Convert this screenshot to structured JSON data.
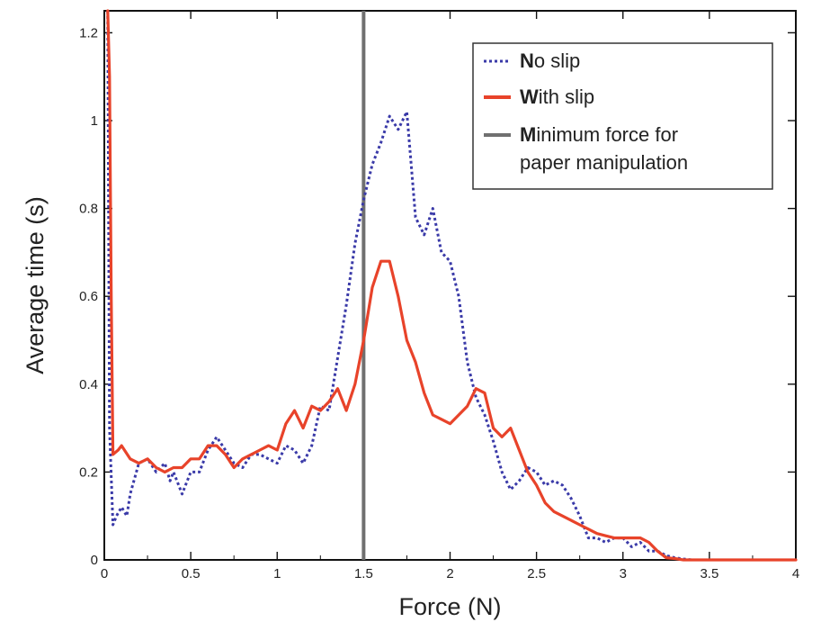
{
  "chart_data": {
    "type": "line",
    "xlabel": "Force (N)",
    "ylabel": "Average time (s)",
    "xlim": [
      0,
      4
    ],
    "ylim": [
      0,
      1.25
    ],
    "xticks": [
      0,
      0.5,
      1,
      1.5,
      2,
      2.5,
      3,
      3.5,
      4
    ],
    "xtick_labels": [
      "0",
      "0.5",
      "1",
      "1.5",
      "2",
      "2.5",
      "3",
      "3.5",
      "4"
    ],
    "yticks": [
      0,
      0.2,
      0.4,
      0.6,
      0.8,
      1,
      1.2
    ],
    "ytick_labels": [
      "0",
      "0.2",
      "0.4",
      "0.6",
      "0.8",
      "1",
      "1.2"
    ],
    "grid": false,
    "minor_ticks_x": [
      0.25,
      0.75,
      1.25,
      1.75,
      2.25,
      2.75,
      3.25,
      3.75
    ],
    "legend_position": "top-right",
    "vertical_line": {
      "name": "Minimum force for paper manipulation",
      "x": 1.5,
      "color": "#707070"
    },
    "series": [
      {
        "name": "No slip",
        "style": "dotted",
        "color": "#3a3aa8",
        "x": [
          0.02,
          0.03,
          0.05,
          0.07,
          0.1,
          0.13,
          0.15,
          0.2,
          0.25,
          0.3,
          0.35,
          0.38,
          0.4,
          0.43,
          0.45,
          0.5,
          0.55,
          0.6,
          0.65,
          0.7,
          0.75,
          0.8,
          0.85,
          0.9,
          0.95,
          1.0,
          1.05,
          1.1,
          1.15,
          1.2,
          1.25,
          1.3,
          1.35,
          1.4,
          1.45,
          1.5,
          1.55,
          1.6,
          1.65,
          1.7,
          1.75,
          1.8,
          1.85,
          1.9,
          1.95,
          2.0,
          2.05,
          2.1,
          2.15,
          2.2,
          2.25,
          2.3,
          2.35,
          2.4,
          2.45,
          2.5,
          2.55,
          2.6,
          2.65,
          2.7,
          2.75,
          2.8,
          2.85,
          2.9,
          2.95,
          3.0,
          3.05,
          3.1,
          3.15,
          3.2,
          3.25,
          3.3,
          3.35,
          3.4
        ],
        "y": [
          1.25,
          0.3,
          0.08,
          0.1,
          0.12,
          0.1,
          0.15,
          0.22,
          0.23,
          0.2,
          0.22,
          0.18,
          0.2,
          0.17,
          0.15,
          0.2,
          0.2,
          0.25,
          0.28,
          0.25,
          0.22,
          0.21,
          0.24,
          0.24,
          0.23,
          0.22,
          0.26,
          0.25,
          0.22,
          0.26,
          0.35,
          0.34,
          0.46,
          0.58,
          0.72,
          0.82,
          0.9,
          0.95,
          1.01,
          0.98,
          1.02,
          0.78,
          0.74,
          0.8,
          0.7,
          0.68,
          0.6,
          0.45,
          0.37,
          0.33,
          0.27,
          0.2,
          0.16,
          0.18,
          0.21,
          0.2,
          0.17,
          0.18,
          0.17,
          0.14,
          0.1,
          0.05,
          0.05,
          0.04,
          0.05,
          0.05,
          0.03,
          0.04,
          0.02,
          0.02,
          0.01,
          0.005,
          0.002,
          0.0
        ]
      },
      {
        "name": "With slip",
        "style": "solid",
        "color": "#e8432a",
        "x": [
          0.02,
          0.03,
          0.04,
          0.05,
          0.08,
          0.1,
          0.15,
          0.2,
          0.25,
          0.3,
          0.35,
          0.4,
          0.45,
          0.5,
          0.55,
          0.6,
          0.65,
          0.7,
          0.75,
          0.8,
          0.85,
          0.9,
          0.95,
          1.0,
          1.05,
          1.1,
          1.15,
          1.2,
          1.25,
          1.3,
          1.35,
          1.4,
          1.45,
          1.5,
          1.55,
          1.6,
          1.65,
          1.7,
          1.75,
          1.8,
          1.85,
          1.9,
          1.95,
          2.0,
          2.05,
          2.1,
          2.15,
          2.2,
          2.25,
          2.3,
          2.35,
          2.4,
          2.45,
          2.5,
          2.55,
          2.6,
          2.65,
          2.7,
          2.75,
          2.8,
          2.85,
          2.9,
          2.95,
          3.0,
          3.05,
          3.1,
          3.15,
          3.2,
          3.25,
          3.3,
          3.35,
          3.5,
          3.75,
          4.0
        ],
        "y": [
          1.25,
          1.1,
          0.6,
          0.24,
          0.25,
          0.26,
          0.23,
          0.22,
          0.23,
          0.21,
          0.2,
          0.21,
          0.21,
          0.23,
          0.23,
          0.26,
          0.26,
          0.24,
          0.21,
          0.23,
          0.24,
          0.25,
          0.26,
          0.25,
          0.31,
          0.34,
          0.3,
          0.35,
          0.34,
          0.36,
          0.39,
          0.34,
          0.4,
          0.5,
          0.62,
          0.68,
          0.68,
          0.6,
          0.5,
          0.45,
          0.38,
          0.33,
          0.32,
          0.31,
          0.33,
          0.35,
          0.39,
          0.38,
          0.3,
          0.28,
          0.3,
          0.25,
          0.2,
          0.17,
          0.13,
          0.11,
          0.1,
          0.09,
          0.08,
          0.07,
          0.06,
          0.055,
          0.05,
          0.05,
          0.05,
          0.05,
          0.04,
          0.02,
          0.005,
          0.003,
          0.0,
          0.0,
          0.0,
          0.0
        ]
      }
    ]
  },
  "legend": {
    "items": [
      {
        "label": "No slip",
        "first_letter": "N",
        "rest": "o slip",
        "style": "dotted",
        "color": "#3a3aa8"
      },
      {
        "label": "With slip",
        "first_letter": "W",
        "rest": "ith slip",
        "style": "solid",
        "color": "#e8432a"
      },
      {
        "label": "Minimum force for paper manipulation",
        "first_letter": "M",
        "rest": "inimum force for",
        "line2": "paper manipulation",
        "style": "solid",
        "color": "#707070"
      }
    ]
  }
}
